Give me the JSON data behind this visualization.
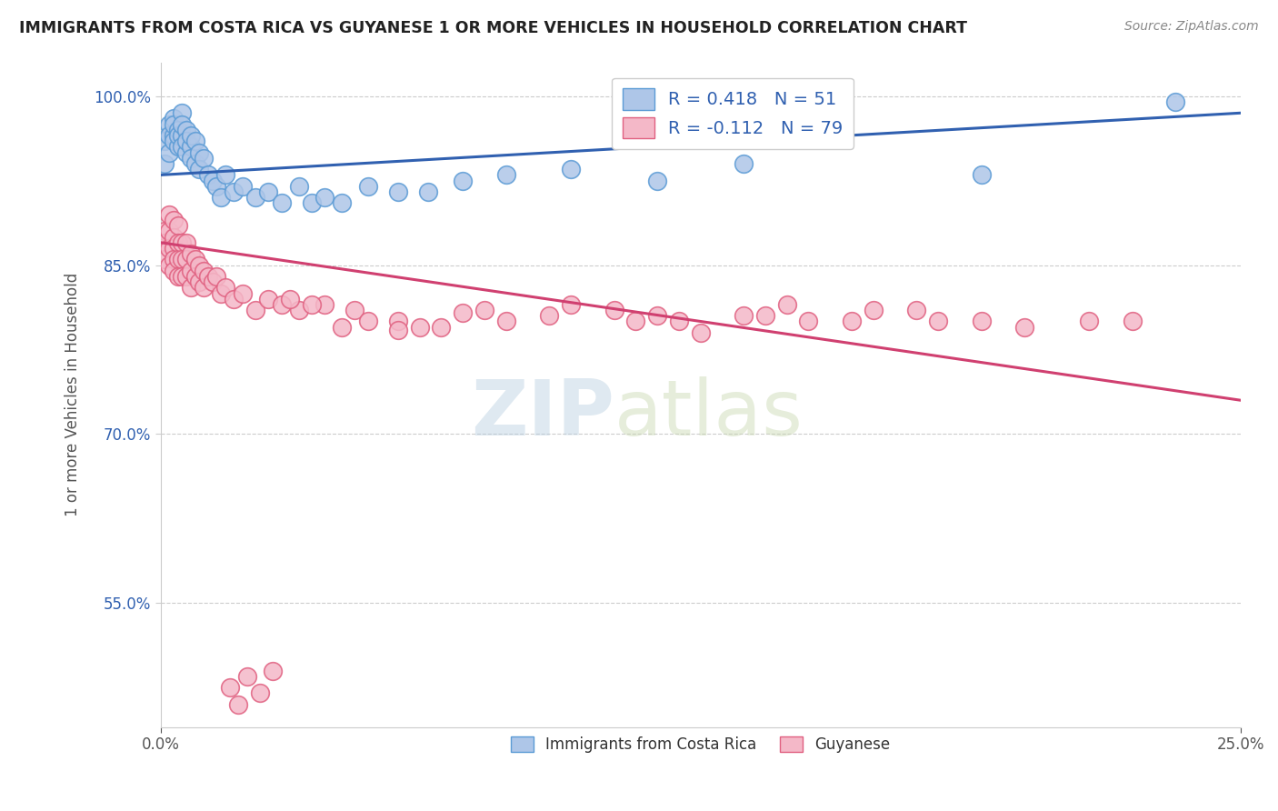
{
  "title": "IMMIGRANTS FROM COSTA RICA VS GUYANESE 1 OR MORE VEHICLES IN HOUSEHOLD CORRELATION CHART",
  "source": "Source: ZipAtlas.com",
  "ylabel": "1 or more Vehicles in Household",
  "xlim": [
    0.0,
    0.25
  ],
  "ylim": [
    0.44,
    1.03
  ],
  "yticks": [
    0.55,
    0.7,
    0.85,
    1.0
  ],
  "ytick_labels": [
    "55.0%",
    "70.0%",
    "85.0%",
    "100.0%"
  ],
  "xticks": [
    0.0,
    0.25
  ],
  "xtick_labels": [
    "0.0%",
    "25.0%"
  ],
  "blue_color": "#aec6e8",
  "blue_edge": "#5b9bd5",
  "pink_color": "#f4b8c8",
  "pink_edge": "#e06080",
  "trendline_blue": "#3060b0",
  "trendline_pink": "#d04070",
  "legend_label_blue": "Immigrants from Costa Rica",
  "legend_label_pink": "Guyanese",
  "R_blue": 0.418,
  "N_blue": 51,
  "R_pink": -0.112,
  "N_pink": 79,
  "watermark_zip": "ZIP",
  "watermark_atlas": "atlas",
  "background": "#ffffff",
  "grid_color": "#cccccc",
  "blue_scatter_x": [
    0.001,
    0.001,
    0.002,
    0.002,
    0.002,
    0.003,
    0.003,
    0.003,
    0.003,
    0.004,
    0.004,
    0.004,
    0.005,
    0.005,
    0.005,
    0.005,
    0.006,
    0.006,
    0.006,
    0.007,
    0.007,
    0.007,
    0.008,
    0.008,
    0.009,
    0.009,
    0.01,
    0.011,
    0.012,
    0.013,
    0.014,
    0.015,
    0.017,
    0.019,
    0.022,
    0.025,
    0.028,
    0.032,
    0.035,
    0.038,
    0.042,
    0.048,
    0.055,
    0.062,
    0.07,
    0.08,
    0.095,
    0.115,
    0.135,
    0.19,
    0.235
  ],
  "blue_scatter_y": [
    0.96,
    0.94,
    0.975,
    0.965,
    0.95,
    0.98,
    0.965,
    0.975,
    0.96,
    0.97,
    0.955,
    0.965,
    0.985,
    0.965,
    0.955,
    0.975,
    0.97,
    0.95,
    0.96,
    0.955,
    0.965,
    0.945,
    0.96,
    0.94,
    0.95,
    0.935,
    0.945,
    0.93,
    0.925,
    0.92,
    0.91,
    0.93,
    0.915,
    0.92,
    0.91,
    0.915,
    0.905,
    0.92,
    0.905,
    0.91,
    0.905,
    0.92,
    0.915,
    0.915,
    0.925,
    0.93,
    0.935,
    0.925,
    0.94,
    0.93,
    0.995
  ],
  "pink_scatter_x": [
    0.001,
    0.001,
    0.001,
    0.002,
    0.002,
    0.002,
    0.002,
    0.003,
    0.003,
    0.003,
    0.003,
    0.003,
    0.004,
    0.004,
    0.004,
    0.004,
    0.005,
    0.005,
    0.005,
    0.006,
    0.006,
    0.006,
    0.007,
    0.007,
    0.007,
    0.008,
    0.008,
    0.009,
    0.009,
    0.01,
    0.01,
    0.011,
    0.012,
    0.013,
    0.014,
    0.015,
    0.017,
    0.019,
    0.022,
    0.025,
    0.028,
    0.032,
    0.038,
    0.045,
    0.055,
    0.065,
    0.075,
    0.09,
    0.105,
    0.12,
    0.135,
    0.15,
    0.165,
    0.18,
    0.2,
    0.215,
    0.225,
    0.175,
    0.19,
    0.145,
    0.16,
    0.06,
    0.08,
    0.095,
    0.11,
    0.125,
    0.14,
    0.048,
    0.042,
    0.035,
    0.07,
    0.055,
    0.03,
    0.115,
    0.016,
    0.018,
    0.02,
    0.023,
    0.026
  ],
  "pink_scatter_y": [
    0.88,
    0.87,
    0.855,
    0.88,
    0.895,
    0.865,
    0.85,
    0.89,
    0.875,
    0.865,
    0.855,
    0.845,
    0.885,
    0.87,
    0.855,
    0.84,
    0.87,
    0.855,
    0.84,
    0.87,
    0.855,
    0.84,
    0.86,
    0.845,
    0.83,
    0.855,
    0.84,
    0.85,
    0.835,
    0.845,
    0.83,
    0.84,
    0.835,
    0.84,
    0.825,
    0.83,
    0.82,
    0.825,
    0.81,
    0.82,
    0.815,
    0.81,
    0.815,
    0.81,
    0.8,
    0.795,
    0.81,
    0.805,
    0.81,
    0.8,
    0.805,
    0.8,
    0.81,
    0.8,
    0.795,
    0.8,
    0.8,
    0.81,
    0.8,
    0.815,
    0.8,
    0.795,
    0.8,
    0.815,
    0.8,
    0.79,
    0.805,
    0.8,
    0.795,
    0.815,
    0.808,
    0.792,
    0.82,
    0.805,
    0.475,
    0.46,
    0.485,
    0.47,
    0.49
  ],
  "blue_trendline_x0": 0.0,
  "blue_trendline_x1": 0.25,
  "blue_trendline_y0": 0.93,
  "blue_trendline_y1": 0.985,
  "pink_trendline_x0": 0.0,
  "pink_trendline_x1": 0.25,
  "pink_trendline_y0": 0.87,
  "pink_trendline_y1": 0.73
}
